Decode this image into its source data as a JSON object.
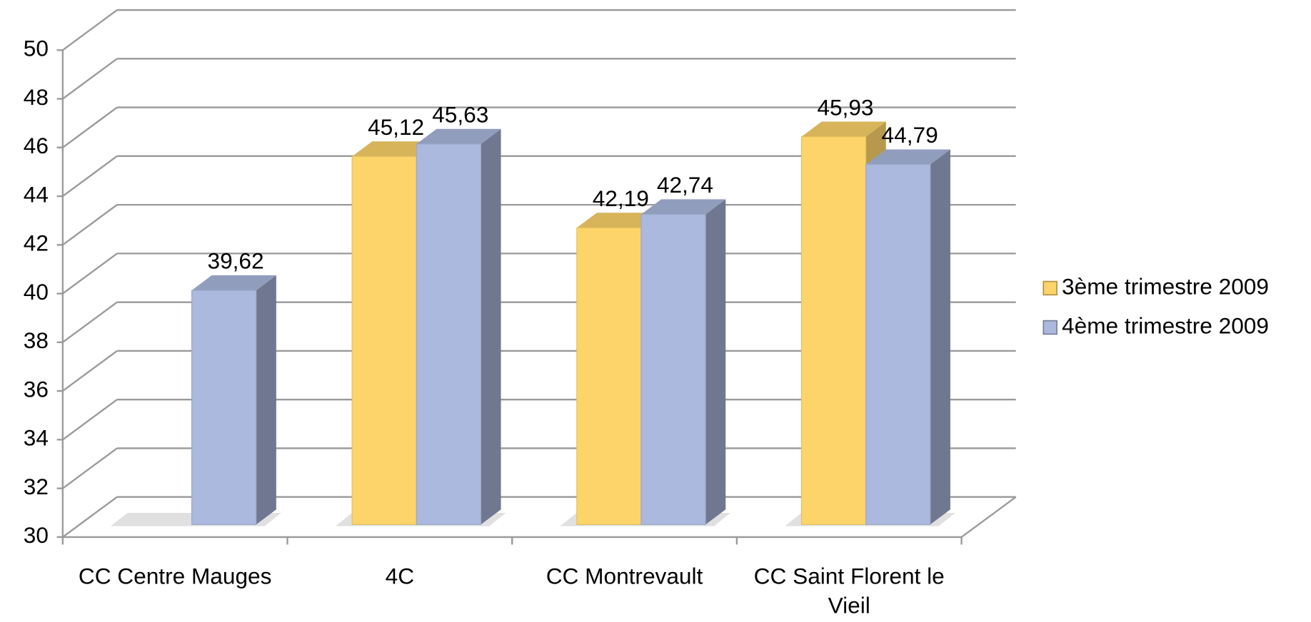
{
  "chart_data": {
    "type": "bar3d",
    "categories": [
      "CC Centre Mauges",
      "4C",
      "CC Montrevault",
      "CC Saint Florent le Vieil"
    ],
    "series": [
      {
        "name": "3ème trimestre 2009",
        "color": "#fdd46a",
        "values": [
          null,
          45.12,
          42.19,
          45.93
        ],
        "value_labels": [
          null,
          "45,12",
          "42,19",
          "45,93"
        ]
      },
      {
        "name": "4ème trimestre 2009",
        "color": "#abb9de",
        "values": [
          39.62,
          45.63,
          42.74,
          44.79
        ],
        "value_labels": [
          "39,62",
          "45,63",
          "42,74",
          "44,79"
        ]
      }
    ],
    "ylim": [
      30,
      50
    ],
    "yticks": [
      30,
      32,
      34,
      36,
      38,
      40,
      42,
      44,
      46,
      48,
      50
    ],
    "grid": true,
    "legend": "right"
  }
}
